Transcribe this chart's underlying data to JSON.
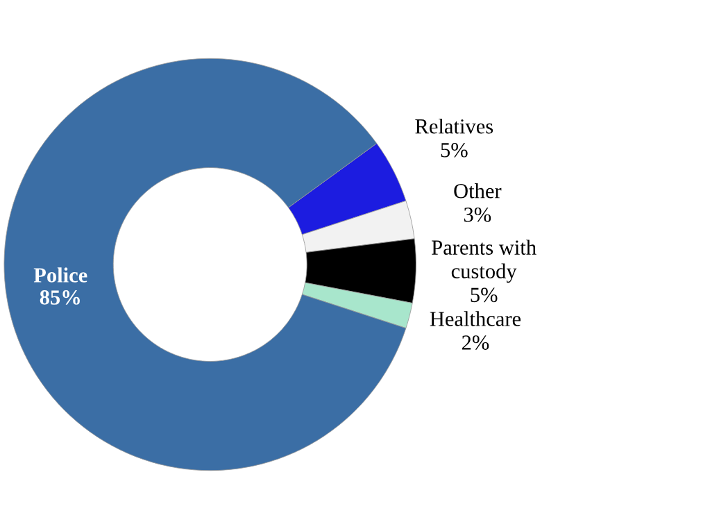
{
  "chart_data": {
    "type": "donut",
    "categories": [
      "Relatives",
      "Other",
      "Parents with\ncustody",
      "Healthcare",
      "Police"
    ],
    "values": [
      5,
      3,
      5,
      2,
      85
    ],
    "value_labels": [
      "5%",
      "3%",
      "5%",
      "2%",
      "85%"
    ],
    "colors": [
      "#1c1ce0",
      "#f2f2f2",
      "#000000",
      "#a8e6cc",
      "#3b6ea5"
    ],
    "legend": false
  }
}
